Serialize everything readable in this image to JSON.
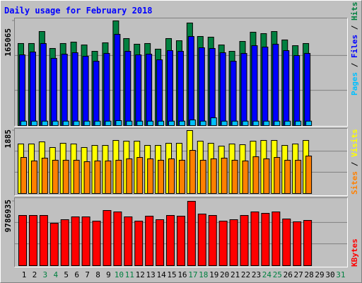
{
  "chart_data": {
    "type": "bar",
    "title": "Daily usage for February 2018",
    "categories": [
      "1",
      "2",
      "3",
      "4",
      "5",
      "6",
      "7",
      "8",
      "9",
      "10",
      "11",
      "12",
      "13",
      "14",
      "15",
      "16",
      "17",
      "18",
      "19",
      "20",
      "21",
      "22",
      "23",
      "24",
      "25",
      "26",
      "27",
      "28",
      "29",
      "30",
      "31"
    ],
    "category_colors": [
      "#000000",
      "#000000",
      "#008040",
      "#008040",
      "#000000",
      "#000000",
      "#000000",
      "#000000",
      "#000000",
      "#008040",
      "#008040",
      "#000000",
      "#000000",
      "#000000",
      "#000000",
      "#000000",
      "#008040",
      "#008040",
      "#000000",
      "#000000",
      "#000000",
      "#000000",
      "#000000",
      "#008040",
      "#008040",
      "#000000",
      "#000000",
      "#000000",
      "#000000",
      "#000000",
      "#008040"
    ],
    "legend_separator": " / ",
    "grid": true,
    "panels": [
      {
        "ylim": [
          0,
          165065
        ],
        "yticks": [
          165065
        ],
        "series": [
          {
            "name": "Hits",
            "color": "#008040",
            "values": [
              129400,
              129400,
              148300,
              121600,
              129400,
              131600,
              127100,
              117100,
              130500,
              165065,
              137200,
              128300,
              129400,
              120500,
              137200,
              133800,
              161700,
              140500,
              139400,
              127100,
              117100,
              132700,
              147200,
              145000,
              148300,
              135000,
              126000,
              129400,
              null,
              null,
              null
            ]
          },
          {
            "name": "Files",
            "color": "#0000ff",
            "values": [
              111500,
              116000,
              129400,
              106000,
              112600,
              114900,
              109300,
              101500,
              113800,
              143900,
              117100,
              111500,
              112600,
              103700,
              118200,
              117100,
              140500,
              122700,
              121600,
              114900,
              101500,
              113800,
              126000,
              123800,
              128300,
              118200,
              110400,
              113800,
              null,
              null,
              null
            ]
          },
          {
            "name": "Pages",
            "color": "#00c0ff",
            "values": [
              7000,
              7000,
              7000,
              7000,
              7000,
              7000,
              7000,
              7000,
              7000,
              7800,
              7000,
              7000,
              7000,
              7000,
              7000,
              7000,
              8900,
              7000,
              12300,
              7000,
              7000,
              7000,
              7000,
              7000,
              7000,
              7000,
              7000,
              7000,
              null,
              null,
              null
            ]
          }
        ]
      },
      {
        "ylim": [
          0,
          1885
        ],
        "yticks": [
          1885
        ],
        "series": [
          {
            "name": "Visits",
            "color": "#ffff00",
            "values": [
              1483,
              1483,
              1546,
              1377,
              1504,
              1483,
              1377,
              1440,
              1440,
              1589,
              1567,
              1567,
              1440,
              1440,
              1504,
              1504,
              1885,
              1567,
              1504,
              1419,
              1483,
              1461,
              1567,
              1589,
              1589,
              1440,
              1483,
              1589,
              null,
              null,
              null
            ]
          },
          {
            "name": "Sites",
            "color": "#ff8000",
            "values": [
              1080,
              975,
              1059,
              996,
              996,
              996,
              953,
              975,
              975,
              996,
              1038,
              1080,
              1038,
              996,
              1038,
              996,
              1292,
              996,
              1038,
              1059,
              996,
              975,
              1101,
              1038,
              1080,
              996,
              996,
              1122,
              null,
              null,
              null
            ]
          }
        ]
      },
      {
        "ylim": [
          0,
          9786935
        ],
        "yticks": [
          9786935
        ],
        "series": [
          {
            "name": "KBytes",
            "color": "#ff0000",
            "values": [
              7636000,
              7636000,
              7636000,
              6453000,
              6991000,
              7421000,
              7421000,
              6776000,
              8389000,
              8174000,
              7421000,
              6776000,
              7528000,
              6991000,
              7636000,
              7528000,
              9786935,
              7851000,
              7636000,
              6776000,
              6991000,
              7636000,
              8174000,
              7959000,
              8174000,
              7098000,
              6668000,
              6883000,
              null,
              null,
              null
            ]
          }
        ]
      }
    ]
  }
}
